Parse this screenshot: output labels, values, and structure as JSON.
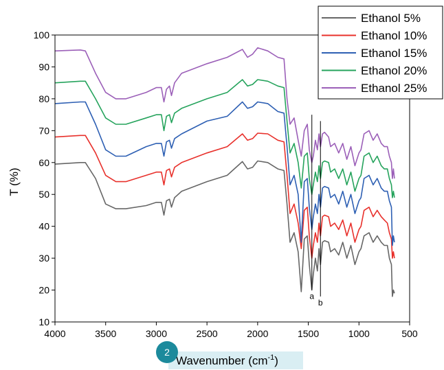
{
  "chart_data": {
    "type": "line",
    "xlabel": "Wavenumber (cm",
    "xlabel_sup": "-1",
    "xlabel_end": ")",
    "ylabel": "T (%)",
    "xlim": [
      4000,
      500
    ],
    "ylim": [
      10,
      100
    ],
    "x_ticks": [
      "4000",
      "3500",
      "3000",
      "2500",
      "2000",
      "1500",
      "1000",
      "500"
    ],
    "y_ticks": [
      "10",
      "20",
      "30",
      "40",
      "50",
      "60",
      "70",
      "80",
      "90",
      "100"
    ],
    "grid": false,
    "legend_position": "top-right",
    "markers": [
      {
        "label": "a",
        "x": 1465,
        "y_top": 75,
        "y_bottom": 20
      },
      {
        "label": "b",
        "x": 1380,
        "y_top": 73,
        "y_bottom": 18
      }
    ],
    "badge": "2",
    "series": [
      {
        "name": "Ethanol 5%",
        "color": "#666666",
        "points": [
          [
            4000,
            59.5
          ],
          [
            3750,
            60
          ],
          [
            3700,
            60
          ],
          [
            3600,
            55
          ],
          [
            3500,
            47
          ],
          [
            3400,
            45.5
          ],
          [
            3300,
            45.5
          ],
          [
            3100,
            46.5
          ],
          [
            3000,
            47.5
          ],
          [
            2950,
            47.5
          ],
          [
            2925,
            43.5
          ],
          [
            2900,
            48
          ],
          [
            2870,
            48.5
          ],
          [
            2850,
            46
          ],
          [
            2820,
            49
          ],
          [
            2750,
            51
          ],
          [
            2500,
            54
          ],
          [
            2300,
            56
          ],
          [
            2150,
            60.3
          ],
          [
            2100,
            58
          ],
          [
            2050,
            58.5
          ],
          [
            2000,
            60.5
          ],
          [
            1900,
            60
          ],
          [
            1800,
            58
          ],
          [
            1740,
            57.5
          ],
          [
            1710,
            47
          ],
          [
            1680,
            35
          ],
          [
            1640,
            38
          ],
          [
            1600,
            32
          ],
          [
            1570,
            19.5
          ],
          [
            1540,
            36
          ],
          [
            1510,
            37
          ],
          [
            1490,
            28
          ],
          [
            1465,
            20
          ],
          [
            1450,
            25
          ],
          [
            1430,
            30
          ],
          [
            1410,
            26
          ],
          [
            1395,
            33
          ],
          [
            1380,
            28
          ],
          [
            1360,
            35
          ],
          [
            1340,
            35.5
          ],
          [
            1300,
            35
          ],
          [
            1280,
            32
          ],
          [
            1240,
            33
          ],
          [
            1200,
            31
          ],
          [
            1160,
            35
          ],
          [
            1120,
            30
          ],
          [
            1080,
            34
          ],
          [
            1040,
            28
          ],
          [
            1000,
            32
          ],
          [
            980,
            33
          ],
          [
            950,
            37
          ],
          [
            900,
            38
          ],
          [
            860,
            35
          ],
          [
            820,
            37
          ],
          [
            780,
            35
          ],
          [
            750,
            34
          ],
          [
            720,
            34
          ],
          [
            700,
            30
          ],
          [
            680,
            28
          ],
          [
            670,
            18
          ],
          [
            660,
            20
          ],
          [
            650,
            19
          ]
        ]
      },
      {
        "name": "Ethanol 10%",
        "color": "#e8302b",
        "points": [
          [
            4000,
            68
          ],
          [
            3750,
            68.5
          ],
          [
            3700,
            68.5
          ],
          [
            3600,
            63
          ],
          [
            3500,
            56
          ],
          [
            3400,
            54
          ],
          [
            3300,
            54
          ],
          [
            3100,
            56
          ],
          [
            3000,
            57
          ],
          [
            2950,
            57
          ],
          [
            2925,
            53
          ],
          [
            2900,
            57.5
          ],
          [
            2870,
            58
          ],
          [
            2850,
            55.5
          ],
          [
            2820,
            58.5
          ],
          [
            2750,
            60
          ],
          [
            2500,
            63
          ],
          [
            2300,
            65
          ],
          [
            2150,
            69
          ],
          [
            2100,
            67
          ],
          [
            2050,
            67.5
          ],
          [
            2000,
            69.2
          ],
          [
            1900,
            69
          ],
          [
            1800,
            67
          ],
          [
            1740,
            66.5
          ],
          [
            1710,
            56
          ],
          [
            1680,
            44
          ],
          [
            1640,
            47
          ],
          [
            1600,
            41
          ],
          [
            1570,
            33
          ],
          [
            1540,
            45
          ],
          [
            1510,
            46
          ],
          [
            1490,
            37
          ],
          [
            1465,
            30
          ],
          [
            1450,
            34
          ],
          [
            1430,
            38
          ],
          [
            1410,
            35
          ],
          [
            1395,
            41
          ],
          [
            1380,
            37
          ],
          [
            1360,
            43
          ],
          [
            1340,
            43.5
          ],
          [
            1300,
            43
          ],
          [
            1280,
            40
          ],
          [
            1240,
            41
          ],
          [
            1200,
            39
          ],
          [
            1160,
            42
          ],
          [
            1120,
            37
          ],
          [
            1080,
            41
          ],
          [
            1040,
            35
          ],
          [
            1000,
            39
          ],
          [
            980,
            40
          ],
          [
            950,
            45
          ],
          [
            900,
            46
          ],
          [
            860,
            43
          ],
          [
            820,
            45
          ],
          [
            780,
            43
          ],
          [
            750,
            42
          ],
          [
            720,
            41
          ],
          [
            700,
            38
          ],
          [
            680,
            36
          ],
          [
            670,
            30
          ],
          [
            660,
            32
          ],
          [
            650,
            30
          ]
        ]
      },
      {
        "name": "Ethanol 15%",
        "color": "#2d5fb3",
        "points": [
          [
            4000,
            78.5
          ],
          [
            3750,
            79
          ],
          [
            3700,
            79
          ],
          [
            3600,
            72
          ],
          [
            3500,
            64
          ],
          [
            3400,
            62
          ],
          [
            3300,
            62
          ],
          [
            3100,
            65
          ],
          [
            3000,
            66
          ],
          [
            2950,
            66
          ],
          [
            2925,
            62
          ],
          [
            2900,
            66.5
          ],
          [
            2870,
            67
          ],
          [
            2850,
            64.5
          ],
          [
            2820,
            67.5
          ],
          [
            2750,
            69
          ],
          [
            2500,
            73
          ],
          [
            2300,
            74.5
          ],
          [
            2150,
            79
          ],
          [
            2100,
            77
          ],
          [
            2050,
            77.5
          ],
          [
            2000,
            79
          ],
          [
            1900,
            78.5
          ],
          [
            1800,
            76
          ],
          [
            1740,
            75.5
          ],
          [
            1710,
            65
          ],
          [
            1680,
            53
          ],
          [
            1640,
            56
          ],
          [
            1600,
            50
          ],
          [
            1570,
            35
          ],
          [
            1540,
            54
          ],
          [
            1510,
            55
          ],
          [
            1490,
            46
          ],
          [
            1465,
            39
          ],
          [
            1450,
            43
          ],
          [
            1430,
            47
          ],
          [
            1410,
            44
          ],
          [
            1395,
            50
          ],
          [
            1380,
            46
          ],
          [
            1360,
            52
          ],
          [
            1340,
            52.5
          ],
          [
            1300,
            52
          ],
          [
            1280,
            49
          ],
          [
            1240,
            50
          ],
          [
            1200,
            47
          ],
          [
            1160,
            51
          ],
          [
            1120,
            46
          ],
          [
            1080,
            50
          ],
          [
            1040,
            44
          ],
          [
            1000,
            48
          ],
          [
            980,
            49
          ],
          [
            950,
            55
          ],
          [
            900,
            56
          ],
          [
            860,
            53
          ],
          [
            820,
            55
          ],
          [
            780,
            52
          ],
          [
            750,
            51
          ],
          [
            720,
            51
          ],
          [
            700,
            48
          ],
          [
            680,
            46
          ],
          [
            670,
            34
          ],
          [
            660,
            37
          ],
          [
            650,
            35
          ]
        ]
      },
      {
        "name": "Ethanol 20%",
        "color": "#25a35c",
        "points": [
          [
            4000,
            85
          ],
          [
            3750,
            85.5
          ],
          [
            3700,
            85.5
          ],
          [
            3600,
            80
          ],
          [
            3500,
            74
          ],
          [
            3400,
            72
          ],
          [
            3300,
            72
          ],
          [
            3100,
            74
          ],
          [
            3000,
            75
          ],
          [
            2950,
            75
          ],
          [
            2925,
            70
          ],
          [
            2900,
            74.5
          ],
          [
            2870,
            75
          ],
          [
            2850,
            72.5
          ],
          [
            2820,
            75.5
          ],
          [
            2750,
            77
          ],
          [
            2500,
            80
          ],
          [
            2300,
            82
          ],
          [
            2150,
            86
          ],
          [
            2100,
            84
          ],
          [
            2050,
            84.5
          ],
          [
            2000,
            86
          ],
          [
            1900,
            85.5
          ],
          [
            1800,
            84
          ],
          [
            1740,
            83.5
          ],
          [
            1710,
            73
          ],
          [
            1680,
            63
          ],
          [
            1640,
            66
          ],
          [
            1600,
            60
          ],
          [
            1570,
            52
          ],
          [
            1540,
            62
          ],
          [
            1510,
            63
          ],
          [
            1490,
            55
          ],
          [
            1465,
            50
          ],
          [
            1450,
            53
          ],
          [
            1430,
            57
          ],
          [
            1410,
            54
          ],
          [
            1395,
            59
          ],
          [
            1380,
            55
          ],
          [
            1360,
            60
          ],
          [
            1340,
            60.5
          ],
          [
            1300,
            60
          ],
          [
            1280,
            57
          ],
          [
            1240,
            58
          ],
          [
            1200,
            55
          ],
          [
            1160,
            58
          ],
          [
            1120,
            53
          ],
          [
            1080,
            57
          ],
          [
            1040,
            51
          ],
          [
            1000,
            55
          ],
          [
            980,
            56
          ],
          [
            950,
            62
          ],
          [
            900,
            63
          ],
          [
            860,
            60
          ],
          [
            820,
            62
          ],
          [
            780,
            59
          ],
          [
            750,
            58
          ],
          [
            720,
            58
          ],
          [
            700,
            55
          ],
          [
            680,
            53
          ],
          [
            670,
            49
          ],
          [
            660,
            51
          ],
          [
            650,
            49
          ]
        ]
      },
      {
        "name": "Ethanol 25%",
        "color": "#9b5fb8",
        "points": [
          [
            4000,
            95
          ],
          [
            3750,
            95.3
          ],
          [
            3700,
            95
          ],
          [
            3600,
            88
          ],
          [
            3500,
            82
          ],
          [
            3400,
            80
          ],
          [
            3300,
            80
          ],
          [
            3100,
            82
          ],
          [
            3000,
            83.5
          ],
          [
            2950,
            83.5
          ],
          [
            2925,
            79
          ],
          [
            2900,
            83
          ],
          [
            2870,
            84
          ],
          [
            2850,
            81
          ],
          [
            2820,
            85
          ],
          [
            2750,
            88
          ],
          [
            2500,
            91
          ],
          [
            2300,
            93
          ],
          [
            2150,
            95.5
          ],
          [
            2100,
            93
          ],
          [
            2050,
            94
          ],
          [
            2000,
            96
          ],
          [
            1900,
            95
          ],
          [
            1800,
            93
          ],
          [
            1740,
            92.5
          ],
          [
            1710,
            80
          ],
          [
            1680,
            72
          ],
          [
            1640,
            74
          ],
          [
            1600,
            67
          ],
          [
            1570,
            62
          ],
          [
            1540,
            70
          ],
          [
            1510,
            72
          ],
          [
            1490,
            64
          ],
          [
            1465,
            60
          ],
          [
            1450,
            62
          ],
          [
            1430,
            67
          ],
          [
            1410,
            64
          ],
          [
            1395,
            69
          ],
          [
            1380,
            65
          ],
          [
            1360,
            69
          ],
          [
            1340,
            69.5
          ],
          [
            1300,
            68
          ],
          [
            1280,
            65
          ],
          [
            1240,
            66
          ],
          [
            1200,
            63
          ],
          [
            1160,
            66
          ],
          [
            1120,
            61
          ],
          [
            1080,
            65
          ],
          [
            1040,
            59
          ],
          [
            1000,
            63
          ],
          [
            980,
            64
          ],
          [
            950,
            69
          ],
          [
            900,
            70
          ],
          [
            860,
            67
          ],
          [
            820,
            69
          ],
          [
            780,
            66
          ],
          [
            750,
            65
          ],
          [
            720,
            65
          ],
          [
            700,
            62
          ],
          [
            680,
            60
          ],
          [
            670,
            55
          ],
          [
            660,
            58
          ],
          [
            650,
            55
          ]
        ]
      }
    ]
  }
}
